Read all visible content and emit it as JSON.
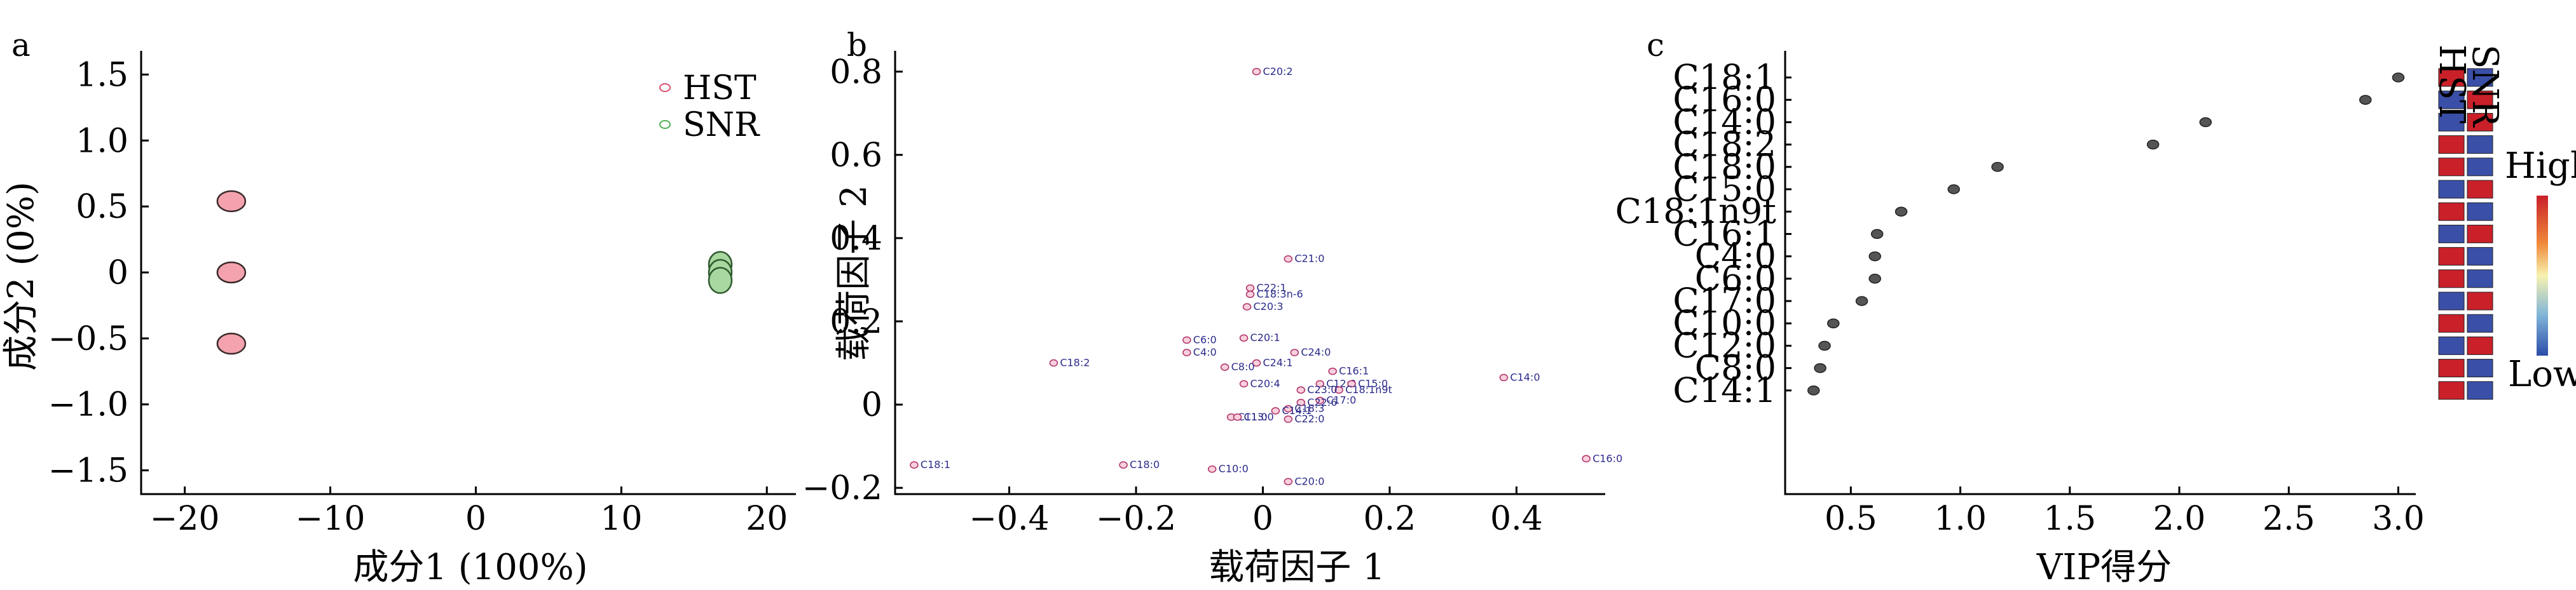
{
  "chart_data": [
    {
      "panel": "a",
      "type": "scatter",
      "xlabel": "成分1 (100%)",
      "ylabel": "成分2 (0%)",
      "xlim": [
        -23,
        22
      ],
      "ylim": [
        -1.68,
        1.68
      ],
      "xticks": [
        "−20",
        "−10",
        "0",
        "10",
        "20"
      ],
      "xtick_values": [
        -20,
        -10,
        0,
        10,
        20
      ],
      "yticks": [
        "1.5",
        "1.0",
        "0.5",
        "0",
        "−0.5",
        "−1.0",
        "−1.5"
      ],
      "ytick_values": [
        1.5,
        1.0,
        0.5,
        0,
        -0.5,
        -1.0,
        -1.5
      ],
      "legend_position": "top-right",
      "series": [
        {
          "name": "HST",
          "color": "#f4a3ae",
          "points": [
            [
              -16.8,
              0.54
            ],
            [
              -16.8,
              0.0
            ],
            [
              -16.8,
              -0.54
            ]
          ]
        },
        {
          "name": "SNR",
          "color": "#a8d8a0",
          "points": [
            [
              16.8,
              0.06
            ],
            [
              16.8,
              0.0
            ],
            [
              16.8,
              -0.06
            ]
          ]
        }
      ]
    },
    {
      "panel": "b",
      "type": "scatter",
      "xlabel": "载荷因子 1",
      "ylabel": "载荷因子 2",
      "xlim": [
        -0.58,
        0.54
      ],
      "ylim": [
        -0.215,
        0.85
      ],
      "xticks": [
        "−0.4",
        "−0.2",
        "0",
        "0.2",
        "0.4"
      ],
      "xtick_values": [
        -0.4,
        -0.2,
        0,
        0.2,
        0.4
      ],
      "yticks": [
        "0.8",
        "0.6",
        "0.4",
        "0.2",
        "0",
        "−0.2"
      ],
      "ytick_values": [
        0.8,
        0.6,
        0.4,
        0.2,
        0,
        -0.2
      ],
      "points": [
        {
          "label": "C20:2",
          "x": -0.01,
          "y": 0.8
        },
        {
          "label": "C21:0",
          "x": 0.04,
          "y": 0.35
        },
        {
          "label": "C22:1",
          "x": -0.02,
          "y": 0.28
        },
        {
          "label": "C18:3n-6",
          "x": -0.02,
          "y": 0.265
        },
        {
          "label": "C20:3",
          "x": -0.025,
          "y": 0.235
        },
        {
          "label": "C20:1",
          "x": -0.03,
          "y": 0.16
        },
        {
          "label": "C6:0",
          "x": -0.12,
          "y": 0.155
        },
        {
          "label": "C4:0",
          "x": -0.12,
          "y": 0.125
        },
        {
          "label": "C24:0",
          "x": 0.05,
          "y": 0.125
        },
        {
          "label": "C24:1",
          "x": -0.01,
          "y": 0.1
        },
        {
          "label": "C8:0",
          "x": -0.06,
          "y": 0.09
        },
        {
          "label": "C18:2",
          "x": -0.33,
          "y": 0.1
        },
        {
          "label": "C16:1",
          "x": 0.11,
          "y": 0.08
        },
        {
          "label": "C20:4",
          "x": -0.03,
          "y": 0.05
        },
        {
          "label": "C12:0",
          "x": 0.09,
          "y": 0.05
        },
        {
          "label": "C15:0",
          "x": 0.14,
          "y": 0.05
        },
        {
          "label": "C18:1n9t",
          "x": 0.12,
          "y": 0.035
        },
        {
          "label": "C23:0",
          "x": 0.06,
          "y": 0.035
        },
        {
          "label": "C17:0",
          "x": 0.09,
          "y": 0.01
        },
        {
          "label": "C22:6",
          "x": 0.06,
          "y": 0.005
        },
        {
          "label": "C18:3",
          "x": 0.04,
          "y": -0.01
        },
        {
          "label": "C14:1",
          "x": 0.02,
          "y": -0.015
        },
        {
          "label": "C14:0",
          "x": 0.38,
          "y": 0.065
        },
        {
          "label": "C16:0",
          "x": 0.51,
          "y": -0.13
        },
        {
          "label": "C11:0",
          "x": -0.05,
          "y": -0.03
        },
        {
          "label": "C13:0",
          "x": -0.04,
          "y": -0.03
        },
        {
          "label": "C22:0",
          "x": 0.04,
          "y": -0.035
        },
        {
          "label": "C18:1",
          "x": -0.55,
          "y": -0.145
        },
        {
          "label": "C18:0",
          "x": -0.22,
          "y": -0.145
        },
        {
          "label": "C10:0",
          "x": -0.08,
          "y": -0.155
        },
        {
          "label": "C20:0",
          "x": 0.04,
          "y": -0.185
        }
      ]
    },
    {
      "panel": "c",
      "type": "scatter",
      "xlabel": "VIP得分",
      "xlim": [
        0.2,
        3.08
      ],
      "xticks": [
        "0.5",
        "1.0",
        "1.5",
        "2.0",
        "2.5",
        "3.0"
      ],
      "xtick_values": [
        0.5,
        1.0,
        1.5,
        2.0,
        2.5,
        3.0
      ],
      "categories": [
        "C18:1",
        "C16:0",
        "C14:0",
        "C18:2",
        "C18:0",
        "C15:0",
        "C18:1n9t",
        "C16:1",
        "C4:0",
        "C6:0",
        "C17:0",
        "C10:0",
        "C12:0",
        "C8:0",
        "C14:1"
      ],
      "values": [
        3.0,
        2.85,
        2.12,
        1.88,
        1.17,
        0.97,
        0.73,
        0.62,
        0.61,
        0.61,
        0.55,
        0.42,
        0.38,
        0.36,
        0.33
      ],
      "heatmap_columns": [
        "HST",
        "SNR"
      ],
      "heatmap": [
        [
          "high",
          "low"
        ],
        [
          "low",
          "high"
        ],
        [
          "low",
          "high"
        ],
        [
          "high",
          "low"
        ],
        [
          "high",
          "low"
        ],
        [
          "low",
          "high"
        ],
        [
          "high",
          "low"
        ],
        [
          "low",
          "high"
        ],
        [
          "high",
          "low"
        ],
        [
          "high",
          "low"
        ],
        [
          "low",
          "high"
        ],
        [
          "high",
          "low"
        ],
        [
          "low",
          "high"
        ],
        [
          "high",
          "low"
        ],
        [
          "high",
          "low"
        ]
      ],
      "colorbar_labels": {
        "high": "High",
        "low": "Low"
      },
      "colors": {
        "high": "#c9202a",
        "low": "#3a4fa8",
        "point": "#555555"
      }
    }
  ]
}
